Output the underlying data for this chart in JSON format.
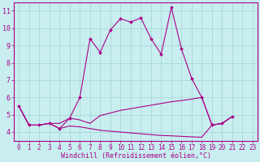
{
  "title": "",
  "xlabel": "Windchill (Refroidissement éolien,°C)",
  "background_color": "#c8eef0",
  "plot_bg_color": "#c8eef0",
  "axis_bg_color": "#b8e8e8",
  "grid_color": "#99cccc",
  "line_color": "#aa0088",
  "spine_color": "#aa0088",
  "xlim": [
    -0.5,
    23.5
  ],
  "ylim": [
    3.5,
    11.5
  ],
  "xticks": [
    0,
    1,
    2,
    3,
    4,
    5,
    6,
    7,
    8,
    9,
    10,
    11,
    12,
    13,
    14,
    15,
    16,
    17,
    18,
    19,
    20,
    21,
    22,
    23
  ],
  "yticks": [
    4,
    5,
    6,
    7,
    8,
    9,
    10,
    11
  ],
  "line1_y": [
    5.5,
    4.4,
    4.4,
    4.5,
    4.2,
    4.8,
    6.0,
    9.4,
    8.6,
    9.9,
    10.55,
    10.35,
    10.6,
    9.4,
    8.5,
    11.2,
    8.8,
    7.1,
    6.0,
    4.4,
    4.5,
    4.9,
    null,
    null
  ],
  "line2_y": [
    5.5,
    4.4,
    4.4,
    4.5,
    4.5,
    4.8,
    4.7,
    4.5,
    4.95,
    5.1,
    5.25,
    5.35,
    5.45,
    5.55,
    5.65,
    5.75,
    5.82,
    5.9,
    6.0,
    4.4,
    4.5,
    4.9,
    null,
    null
  ],
  "line3_y": [
    5.5,
    4.4,
    4.4,
    4.5,
    4.2,
    4.35,
    4.3,
    4.2,
    4.1,
    4.05,
    4.0,
    3.95,
    3.9,
    3.85,
    3.8,
    3.78,
    3.75,
    3.72,
    3.7,
    4.4,
    4.5,
    4.9,
    null,
    null
  ],
  "tick_color": "#aa0088",
  "tick_fontsize": 5.5,
  "xlabel_fontsize": 6.0,
  "xlabel_color": "#aa0088",
  "marker": "D",
  "markersize": 2.0,
  "linewidth": 0.8
}
